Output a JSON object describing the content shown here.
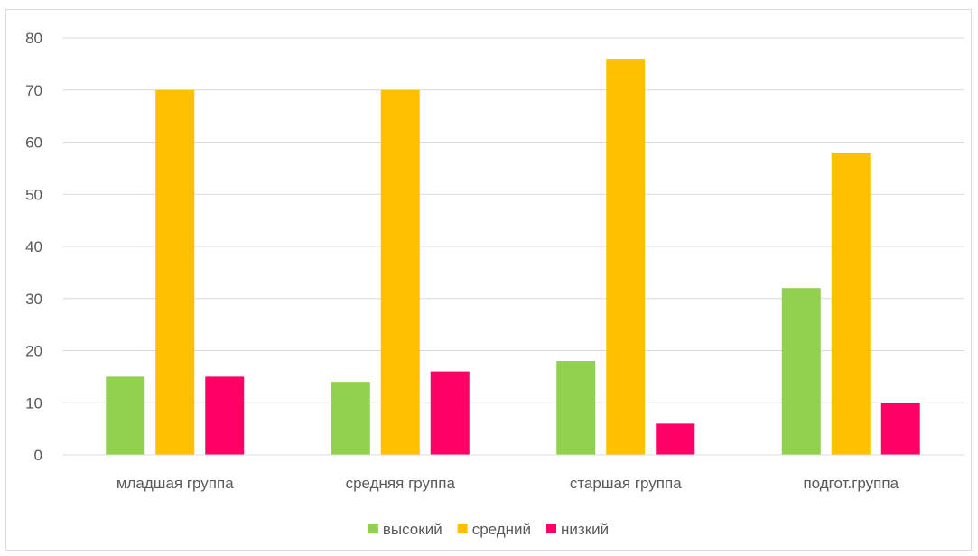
{
  "chart_data": {
    "type": "bar",
    "categories": [
      "младшая группа",
      "средняя группа",
      "старшая группа",
      "подгот.группа"
    ],
    "series": [
      {
        "name": "высокий",
        "values": [
          15,
          14,
          18,
          32
        ],
        "color": "#92D050"
      },
      {
        "name": "средний",
        "values": [
          70,
          70,
          76,
          58
        ],
        "color": "#FFC000"
      },
      {
        "name": "низкий",
        "values": [
          15,
          16,
          6,
          10
        ],
        "color": "#FF0066"
      }
    ],
    "y_ticks": [
      "0",
      "10",
      "20",
      "30",
      "40",
      "50",
      "60",
      "70",
      "80"
    ],
    "ylim": [
      0,
      80
    ],
    "grid": true,
    "legend_position": "bottom",
    "title": "",
    "xlabel": "",
    "ylabel": ""
  }
}
